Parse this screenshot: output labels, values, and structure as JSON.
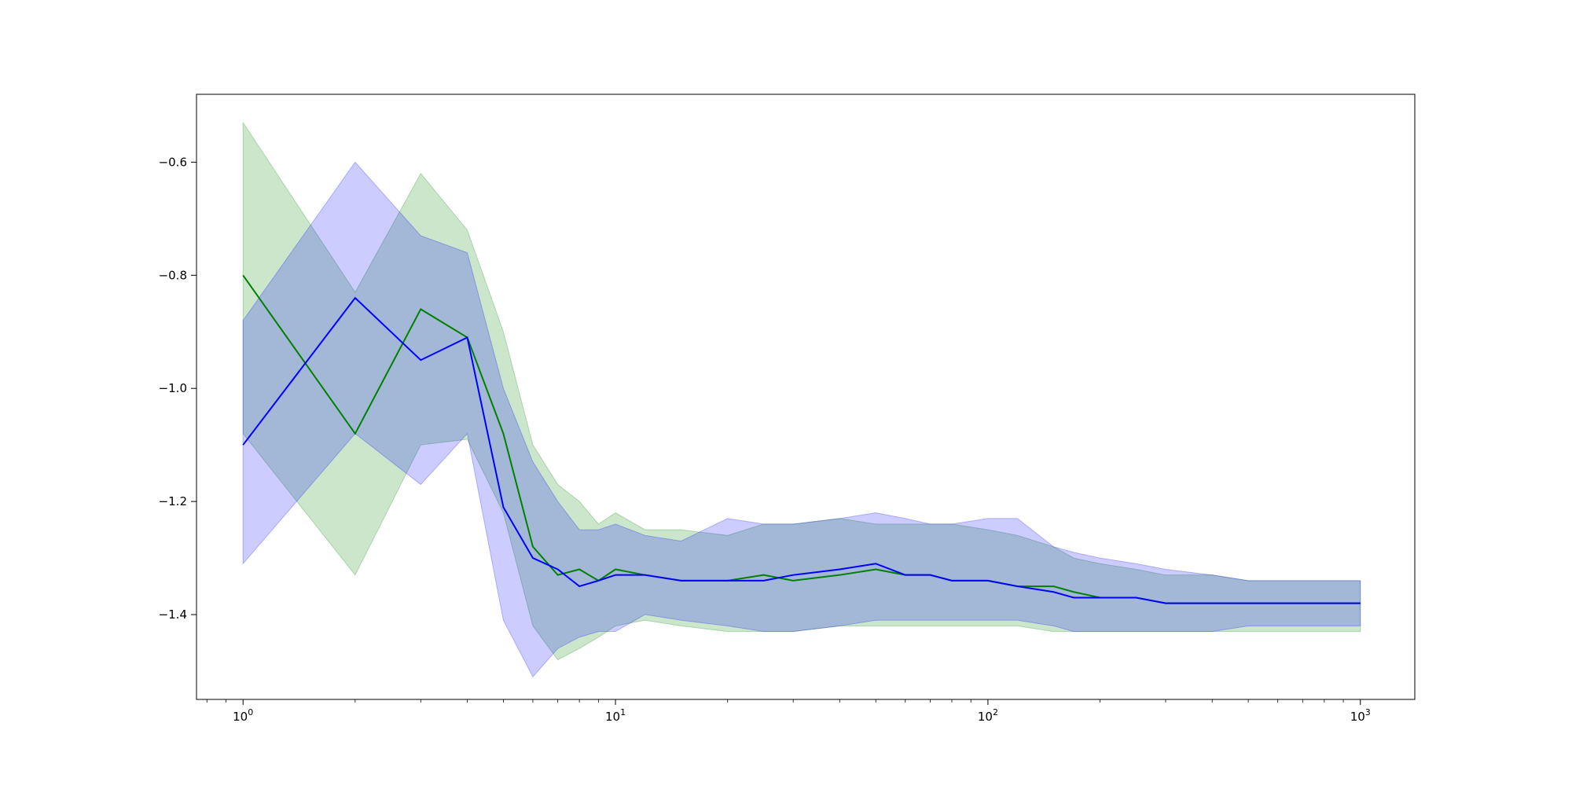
{
  "chart_data": {
    "type": "line",
    "title": "",
    "xlabel": "",
    "ylabel": "",
    "xscale": "log",
    "xlim": [
      0.75,
      1400
    ],
    "ylim": [
      -1.55,
      -0.48
    ],
    "x_ticks": [
      {
        "value": 1,
        "base": "10",
        "exp": "0"
      },
      {
        "value": 10,
        "base": "10",
        "exp": "1"
      },
      {
        "value": 100,
        "base": "10",
        "exp": "2"
      },
      {
        "value": 1000,
        "base": "10",
        "exp": "3"
      }
    ],
    "y_ticks": [
      {
        "value": -0.6,
        "label": "−0.6"
      },
      {
        "value": -0.8,
        "label": "−0.8"
      },
      {
        "value": -1.0,
        "label": "−1.0"
      },
      {
        "value": -1.2,
        "label": "−1.2"
      },
      {
        "value": -1.4,
        "label": "−1.4"
      }
    ],
    "grid": false,
    "legend": "none",
    "series": [
      {
        "color": "#008000",
        "band_color": "#008000",
        "band_opacity": 0.2,
        "x": [
          1,
          2,
          3,
          4,
          5,
          6,
          7,
          8,
          9,
          10,
          12,
          15,
          20,
          25,
          30,
          40,
          50,
          60,
          70,
          80,
          100,
          120,
          150,
          170,
          200,
          250,
          300,
          400,
          500,
          700,
          1000
        ],
        "y": [
          -0.8,
          -1.08,
          -0.86,
          -0.91,
          -1.08,
          -1.28,
          -1.33,
          -1.32,
          -1.34,
          -1.32,
          -1.33,
          -1.34,
          -1.34,
          -1.33,
          -1.34,
          -1.33,
          -1.32,
          -1.33,
          -1.33,
          -1.34,
          -1.34,
          -1.35,
          -1.35,
          -1.36,
          -1.37,
          -1.37,
          -1.38,
          -1.38,
          -1.38,
          -1.38,
          -1.38
        ],
        "lower": [
          -1.08,
          -1.33,
          -1.1,
          -1.09,
          -1.22,
          -1.42,
          -1.48,
          -1.46,
          -1.44,
          -1.42,
          -1.41,
          -1.42,
          -1.43,
          -1.43,
          -1.43,
          -1.42,
          -1.42,
          -1.42,
          -1.42,
          -1.42,
          -1.42,
          -1.42,
          -1.43,
          -1.43,
          -1.43,
          -1.43,
          -1.43,
          -1.43,
          -1.43,
          -1.43,
          -1.43
        ],
        "upper": [
          -0.53,
          -0.83,
          -0.62,
          -0.72,
          -0.9,
          -1.1,
          -1.17,
          -1.2,
          -1.24,
          -1.22,
          -1.25,
          -1.25,
          -1.26,
          -1.24,
          -1.24,
          -1.23,
          -1.24,
          -1.24,
          -1.24,
          -1.24,
          -1.25,
          -1.26,
          -1.28,
          -1.3,
          -1.31,
          -1.32,
          -1.33,
          -1.33,
          -1.34,
          -1.34,
          -1.34
        ]
      },
      {
        "color": "#0000ff",
        "band_color": "#0000ff",
        "band_opacity": 0.2,
        "x": [
          1,
          2,
          3,
          4,
          5,
          6,
          7,
          8,
          9,
          10,
          12,
          15,
          20,
          25,
          30,
          40,
          50,
          60,
          70,
          80,
          100,
          120,
          150,
          170,
          200,
          250,
          300,
          400,
          500,
          700,
          1000
        ],
        "y": [
          -1.1,
          -0.84,
          -0.95,
          -0.91,
          -1.21,
          -1.3,
          -1.32,
          -1.35,
          -1.34,
          -1.33,
          -1.33,
          -1.34,
          -1.34,
          -1.34,
          -1.33,
          -1.32,
          -1.31,
          -1.33,
          -1.33,
          -1.34,
          -1.34,
          -1.35,
          -1.36,
          -1.37,
          -1.37,
          -1.37,
          -1.38,
          -1.38,
          -1.38,
          -1.38,
          -1.38
        ],
        "lower": [
          -1.31,
          -1.08,
          -1.17,
          -1.08,
          -1.41,
          -1.51,
          -1.46,
          -1.44,
          -1.43,
          -1.43,
          -1.4,
          -1.41,
          -1.42,
          -1.43,
          -1.43,
          -1.42,
          -1.41,
          -1.41,
          -1.41,
          -1.41,
          -1.41,
          -1.41,
          -1.42,
          -1.43,
          -1.43,
          -1.43,
          -1.43,
          -1.43,
          -1.42,
          -1.42,
          -1.42
        ],
        "upper": [
          -0.88,
          -0.6,
          -0.73,
          -0.76,
          -1.0,
          -1.13,
          -1.2,
          -1.25,
          -1.25,
          -1.24,
          -1.26,
          -1.27,
          -1.23,
          -1.24,
          -1.24,
          -1.23,
          -1.22,
          -1.23,
          -1.24,
          -1.24,
          -1.23,
          -1.23,
          -1.28,
          -1.29,
          -1.3,
          -1.31,
          -1.32,
          -1.33,
          -1.34,
          -1.34,
          -1.34
        ]
      }
    ]
  }
}
